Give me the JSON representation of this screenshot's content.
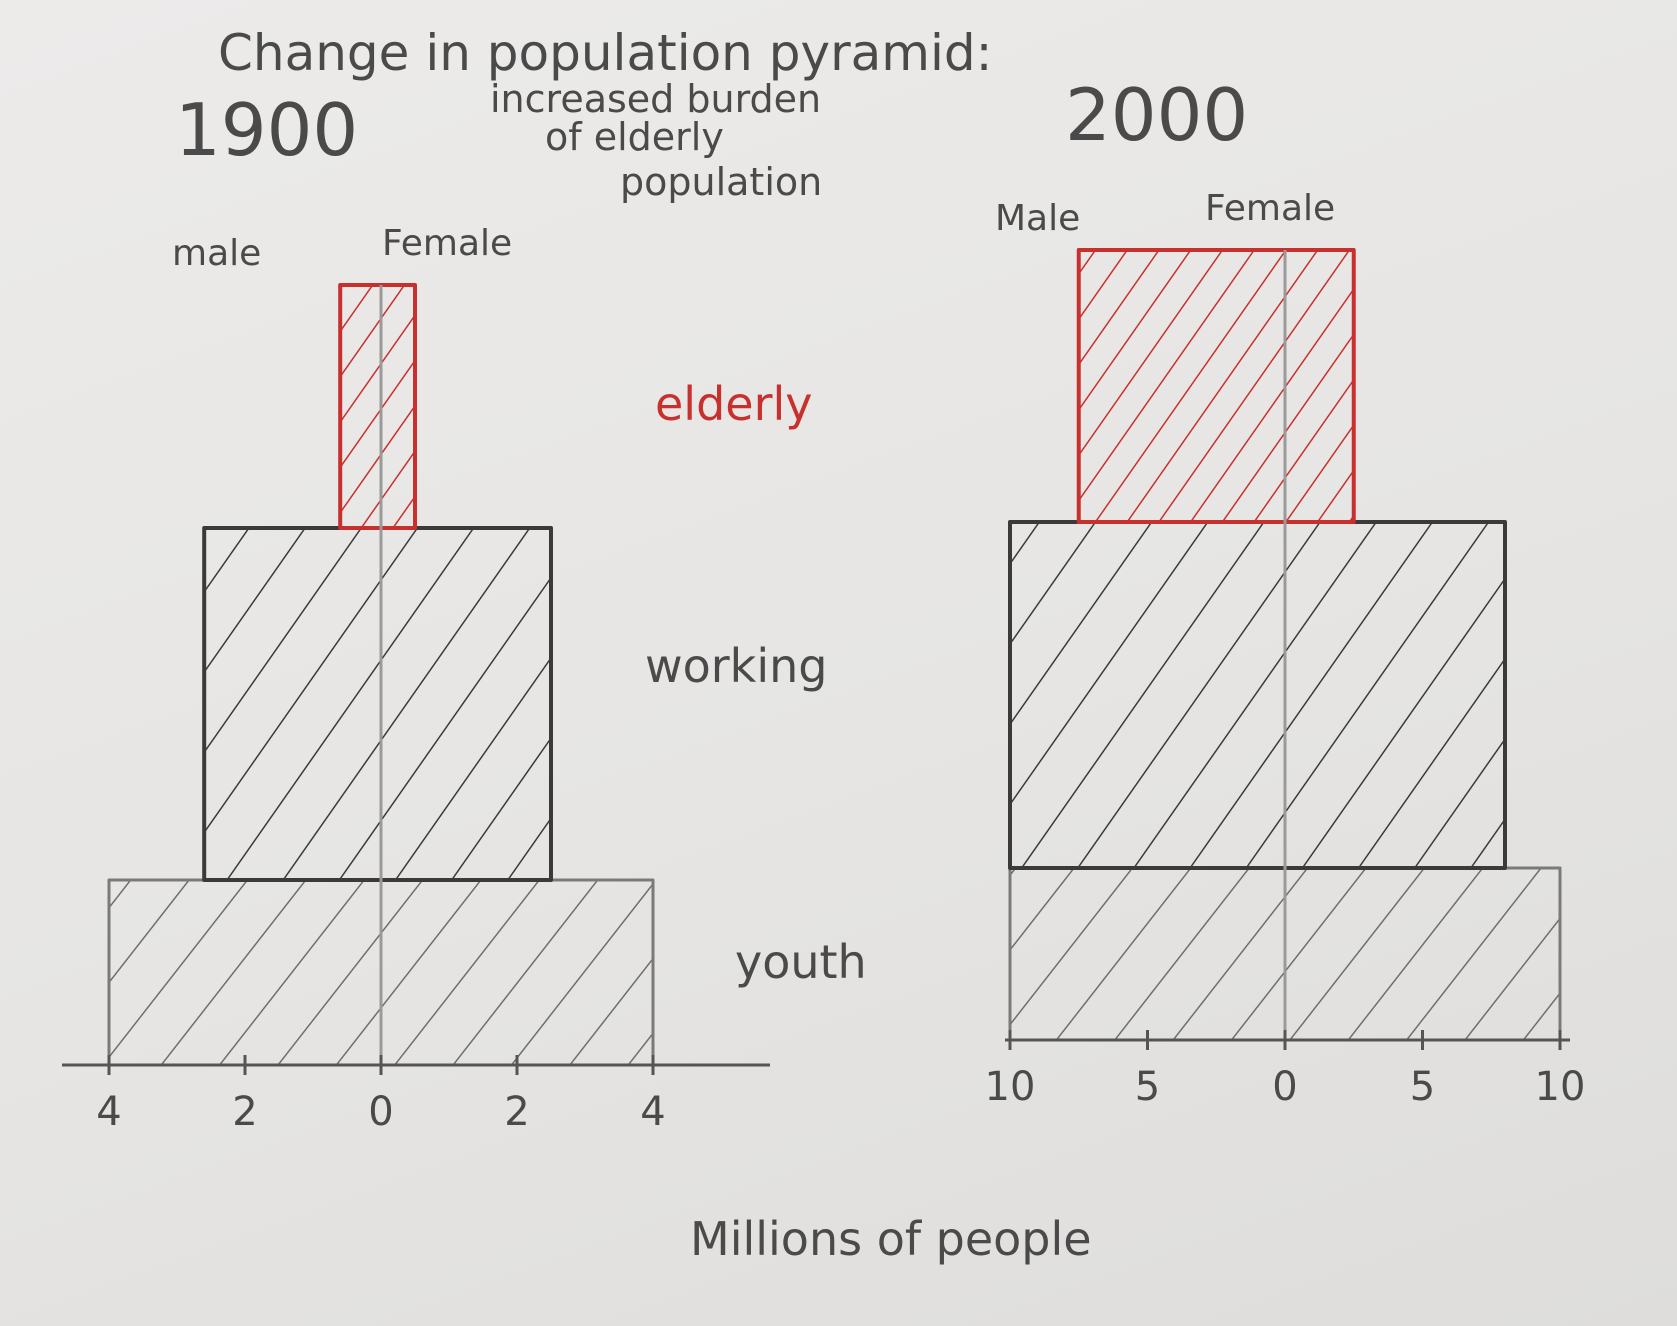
{
  "title_line1": "Change in population pyramid:",
  "subtitle": [
    "increased burden",
    "of elderly",
    "population"
  ],
  "xlabel": "Millions of people",
  "colors": {
    "elderly": "#c8302e",
    "working": "#3a3a3a",
    "youth": "#7a7a7a",
    "center_line": "#9a9a9a",
    "text": "#4a4a4a"
  },
  "group_labels": {
    "elderly": "elderly",
    "working": "working",
    "youth": "youth"
  },
  "chart_data": [
    {
      "type": "bar",
      "title": "1900",
      "orientation": "horizontal-back-to-back",
      "side_labels": [
        "male",
        "Female"
      ],
      "categories": [
        "youth",
        "working",
        "elderly"
      ],
      "series": [
        {
          "name": "male",
          "values": [
            4,
            2.6,
            0.6
          ]
        },
        {
          "name": "Female",
          "values": [
            4,
            2.5,
            0.5
          ]
        }
      ],
      "xlim": [
        -4,
        4
      ],
      "ticks": [
        -4,
        -2,
        0,
        2,
        4
      ],
      "tick_labels": [
        "4",
        "2",
        "0",
        "2",
        "4"
      ],
      "xlabel": "Millions of people"
    },
    {
      "type": "bar",
      "title": "2000",
      "orientation": "horizontal-back-to-back",
      "side_labels": [
        "Male",
        "Female"
      ],
      "categories": [
        "youth",
        "working",
        "elderly"
      ],
      "series": [
        {
          "name": "Male",
          "values": [
            10,
            10,
            7.5
          ]
        },
        {
          "name": "Female",
          "values": [
            10,
            8,
            2.5
          ]
        }
      ],
      "xlim": [
        -10,
        10
      ],
      "ticks": [
        -10,
        -5,
        0,
        5,
        10
      ],
      "tick_labels": [
        "10",
        "5",
        "0",
        "5",
        "10"
      ],
      "xlabel": "Millions of people"
    }
  ]
}
